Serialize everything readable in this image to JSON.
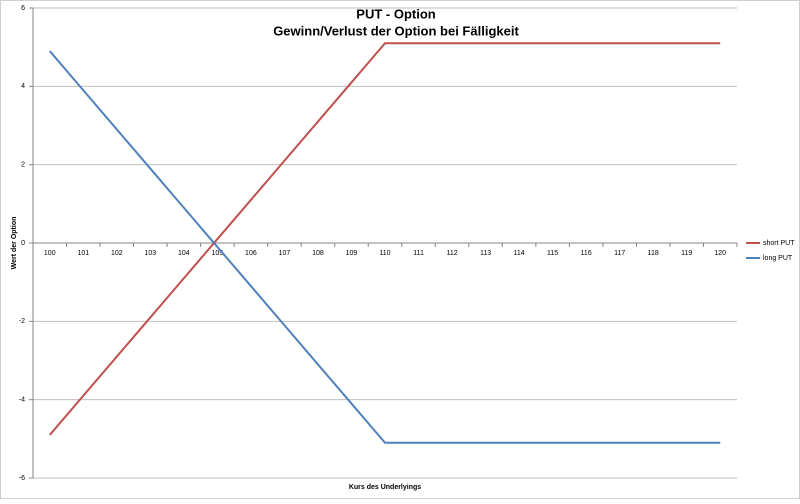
{
  "chart_data": {
    "type": "line",
    "title": "PUT - Option",
    "subtitle": "Gewinn/Verlust der Option bei Fälligkeit",
    "x_label": "Kurs des Underlyings",
    "y_label": "Wert der Option",
    "categories": [
      "100",
      "101",
      "102",
      "103",
      "104",
      "105",
      "106",
      "107",
      "108",
      "109",
      "110",
      "111",
      "112",
      "113",
      "114",
      "115",
      "116",
      "117",
      "118",
      "119",
      "120"
    ],
    "series": [
      {
        "name": "short PUT",
        "color": "#c0504d",
        "values": [
          -4.9,
          -3.9,
          -2.9,
          -1.9,
          -0.9,
          0.1,
          1.1,
          2.1,
          3.1,
          4.1,
          5.1,
          5.1,
          5.1,
          5.1,
          5.1,
          5.1,
          5.1,
          5.1,
          5.1,
          5.1,
          5.1
        ]
      },
      {
        "name": "long PUT",
        "color": "#4f81bd",
        "values": [
          4.9,
          3.9,
          2.9,
          1.9,
          0.9,
          -0.1,
          -1.1,
          -2.1,
          -3.1,
          -4.1,
          -5.1,
          -5.1,
          -5.1,
          -5.1,
          -5.1,
          -5.1,
          -5.1,
          -5.1,
          -5.1,
          -5.1,
          -5.1
        ]
      }
    ],
    "ylim": [
      -6,
      6
    ],
    "yticks": [
      -6,
      -4,
      -2,
      0,
      2,
      4,
      6
    ],
    "grid": true,
    "legend": "right"
  }
}
